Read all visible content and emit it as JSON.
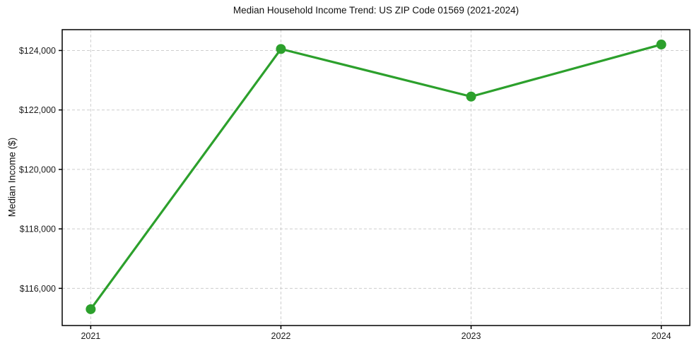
{
  "chart_data": {
    "type": "line",
    "title": "Median Household Income Trend: US ZIP Code 01569 (2021-2024)",
    "xlabel": "",
    "ylabel": "Median Income ($)",
    "x": [
      2021,
      2022,
      2023,
      2024
    ],
    "values": [
      115300,
      124050,
      122450,
      124200
    ],
    "x_tick_labels": [
      "2021",
      "2022",
      "2023",
      "2024"
    ],
    "y_ticks": [
      116000,
      118000,
      120000,
      122000,
      124000
    ],
    "y_tick_labels": [
      "$116,000",
      "$118,000",
      "$120,000",
      "$122,000",
      "$124,000"
    ],
    "xlim": [
      2020.85,
      2024.15
    ],
    "ylim": [
      114750,
      124700
    ],
    "grid": true,
    "grid_style": "dashed",
    "legend": "none",
    "line_color": "#2ca02c",
    "marker": "circle",
    "grid_color": "#cdcdcd",
    "axis_color": "#000000",
    "background": "#ffffff"
  }
}
